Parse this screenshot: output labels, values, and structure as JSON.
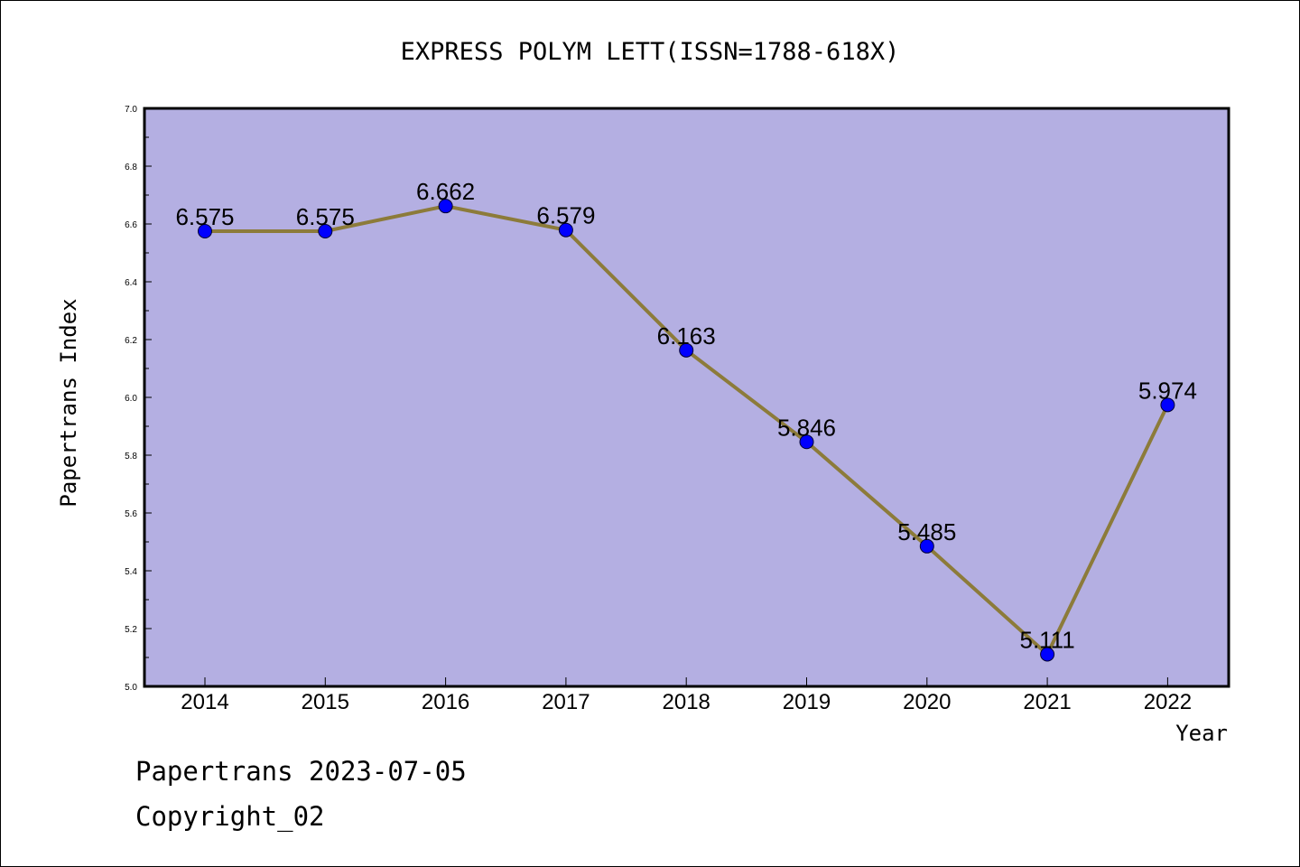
{
  "footer": {
    "line1": "Papertrans 2023-07-05",
    "line2": "Copyright_02"
  },
  "colors": {
    "plot_background": "#b4afe2",
    "line": "#8c7b3a",
    "marker": "#0000ff",
    "axes": "#000000"
  },
  "chart_data": {
    "type": "line",
    "title": "EXPRESS POLYM LETT(ISSN=1788-618X)",
    "xlabel": "Year",
    "ylabel": "Papertrans Index",
    "categories": [
      "2014",
      "2015",
      "2016",
      "2017",
      "2018",
      "2019",
      "2020",
      "2021",
      "2022"
    ],
    "values": [
      6.575,
      6.575,
      6.662,
      6.579,
      6.163,
      5.846,
      5.485,
      5.111,
      5.974
    ],
    "data_labels": [
      "6.575",
      "6.575",
      "6.662",
      "6.579",
      "6.163",
      "5.846",
      "5.485",
      "5.111",
      "5.974"
    ],
    "ylim": [
      5.0,
      7.0
    ],
    "yticks": [
      "5.0",
      "5.2",
      "5.4",
      "5.6",
      "5.8",
      "6.0",
      "6.2",
      "6.4",
      "6.6",
      "6.8",
      "7.0"
    ],
    "grid": false,
    "legend": "none"
  }
}
